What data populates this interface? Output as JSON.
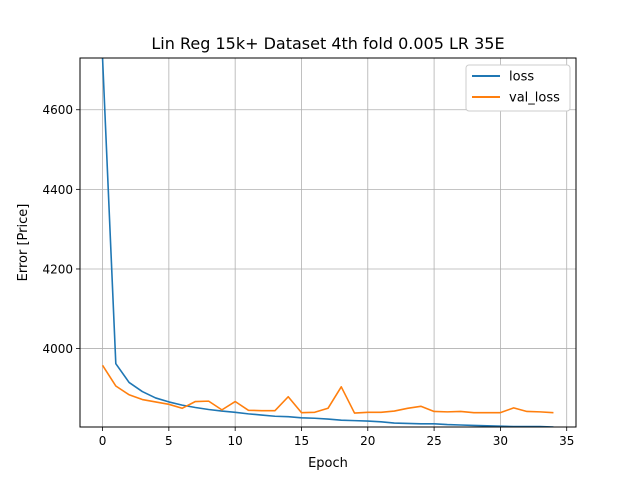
{
  "chart_data": {
    "type": "line",
    "title": "Lin Reg 15k+ Dataset 4th fold 0.005 LR 35E",
    "xlabel": "Epoch",
    "ylabel": "Error [Price]",
    "xlim": [
      -1.7,
      35.7
    ],
    "ylim": [
      3803,
      4730
    ],
    "xticks": [
      0,
      5,
      10,
      15,
      20,
      25,
      30,
      35
    ],
    "yticks": [
      4000,
      4200,
      4400,
      4600
    ],
    "grid": true,
    "legend_position": "top-right",
    "x": [
      0,
      1,
      2,
      3,
      4,
      5,
      6,
      7,
      8,
      9,
      10,
      11,
      12,
      13,
      14,
      15,
      16,
      17,
      18,
      19,
      20,
      21,
      22,
      23,
      24,
      25,
      26,
      27,
      28,
      29,
      30,
      31,
      32,
      33,
      34
    ],
    "series": [
      {
        "name": "loss",
        "color": "#1f77b4",
        "values": [
          4730,
          3962,
          3915,
          3892,
          3876,
          3866,
          3858,
          3852,
          3847,
          3843,
          3840,
          3836,
          3833,
          3830,
          3829,
          3826,
          3825,
          3823,
          3820,
          3819,
          3818,
          3816,
          3813,
          3812,
          3811,
          3811,
          3809,
          3808,
          3807,
          3806,
          3805,
          3804,
          3804,
          3804,
          3803
        ]
      },
      {
        "name": "val_loss",
        "color": "#ff7f0e",
        "values": [
          3958,
          3906,
          3884,
          3872,
          3866,
          3860,
          3850,
          3867,
          3868,
          3846,
          3867,
          3845,
          3844,
          3844,
          3879,
          3839,
          3840,
          3850,
          3904,
          3838,
          3840,
          3840,
          3843,
          3850,
          3855,
          3842,
          3841,
          3842,
          3839,
          3839,
          3839,
          3851,
          3842,
          3841,
          3839
        ]
      }
    ]
  }
}
